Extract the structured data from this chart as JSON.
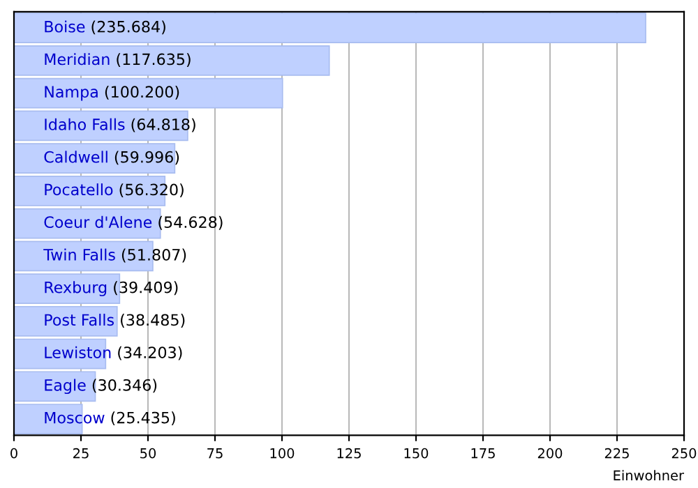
{
  "chart_data": {
    "type": "bar",
    "orientation": "horizontal",
    "xlabel": "Einwohner",
    "categories": [
      "Boise",
      "Meridian",
      "Nampa",
      "Idaho Falls",
      "Caldwell",
      "Pocatello",
      "Coeur d'Alene",
      "Twin Falls",
      "Rexburg",
      "Post Falls",
      "Lewiston",
      "Eagle",
      "Moscow"
    ],
    "values": [
      235.684,
      117.635,
      100.2,
      64.818,
      59.996,
      56.32,
      54.628,
      51.807,
      39.409,
      38.485,
      34.203,
      30.346,
      25.435
    ],
    "value_labels": [
      "(235.684)",
      "(117.635)",
      "(100.200)",
      "(64.818)",
      "(59.996)",
      "(56.320)",
      "(54.628)",
      "(51.807)",
      "(39.409)",
      "(38.485)",
      "(34.203)",
      "(30.346)",
      "(25.435)"
    ],
    "color": "#bfd0ff",
    "xlim": [
      0,
      250
    ],
    "xticks": [
      0,
      25,
      50,
      75,
      100,
      125,
      150,
      175,
      200,
      225,
      250
    ],
    "grid": "x"
  }
}
